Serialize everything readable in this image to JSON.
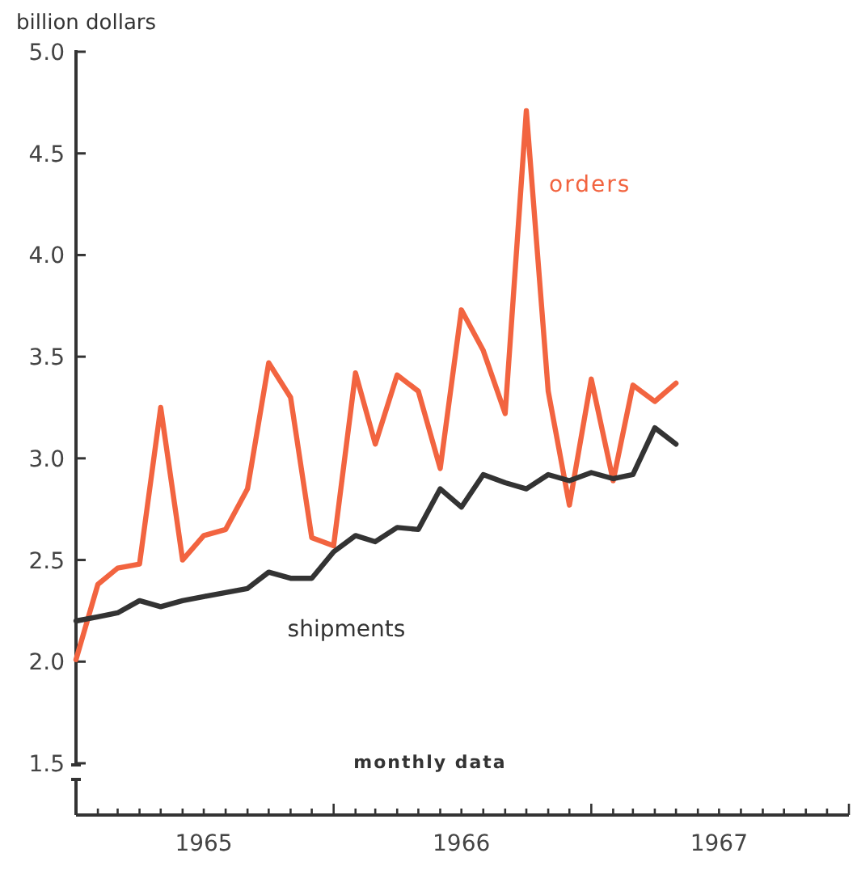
{
  "chart_data": {
    "type": "line",
    "ylabel": "billion dollars",
    "x": [
      "1965-01",
      "1965-02",
      "1965-03",
      "1965-04",
      "1965-05",
      "1965-06",
      "1965-07",
      "1965-08",
      "1965-09",
      "1965-10",
      "1965-11",
      "1965-12",
      "1966-01",
      "1966-02",
      "1966-03",
      "1966-04",
      "1966-05",
      "1966-06",
      "1966-07",
      "1966-08",
      "1966-09",
      "1966-10",
      "1966-11",
      "1966-12",
      "1967-01",
      "1967-02",
      "1967-03",
      "1967-04",
      "1967-05"
    ],
    "series": [
      {
        "name": "orders",
        "color": "#f26440",
        "values": [
          2.01,
          2.38,
          2.46,
          2.48,
          3.25,
          2.5,
          2.62,
          2.65,
          2.85,
          3.47,
          3.3,
          2.61,
          2.57,
          3.42,
          3.07,
          3.41,
          3.33,
          2.95,
          3.73,
          3.53,
          3.22,
          4.71,
          3.33,
          2.77,
          3.39,
          2.89,
          3.36,
          3.28,
          3.37
        ]
      },
      {
        "name": "shipments",
        "color": "#333333",
        "values": [
          2.2,
          2.22,
          2.24,
          2.3,
          2.27,
          2.3,
          2.32,
          2.34,
          2.36,
          2.44,
          2.41,
          2.41,
          2.54,
          2.62,
          2.59,
          2.66,
          2.65,
          2.85,
          2.76,
          2.92,
          2.88,
          2.85,
          2.92,
          2.89,
          2.93,
          2.9,
          2.92,
          3.15,
          3.07
        ]
      }
    ],
    "ylim": [
      1.5,
      5.0
    ],
    "yticks": [
      {
        "value": 1.5,
        "label": "1.5"
      },
      {
        "value": 2,
        "label": "2.0"
      },
      {
        "value": 2.5,
        "label": "2.5"
      },
      {
        "value": 3,
        "label": "3.0"
      },
      {
        "value": 3.5,
        "label": "3.5"
      },
      {
        "value": 4,
        "label": "4.0"
      },
      {
        "value": 4.5,
        "label": "4.5"
      },
      {
        "value": 5,
        "label": "5.0"
      }
    ],
    "xlim": [
      "1965-01",
      "1968-01"
    ],
    "xticks": [
      {
        "value": "1965-07",
        "label": "1965"
      },
      {
        "value": "1966-07",
        "label": "1966"
      },
      {
        "value": "1967-07",
        "label": "1967"
      }
    ],
    "annotations": [
      "monthly data"
    ],
    "grid": false,
    "legend": false,
    "marker": "none",
    "line_style": "solid"
  }
}
